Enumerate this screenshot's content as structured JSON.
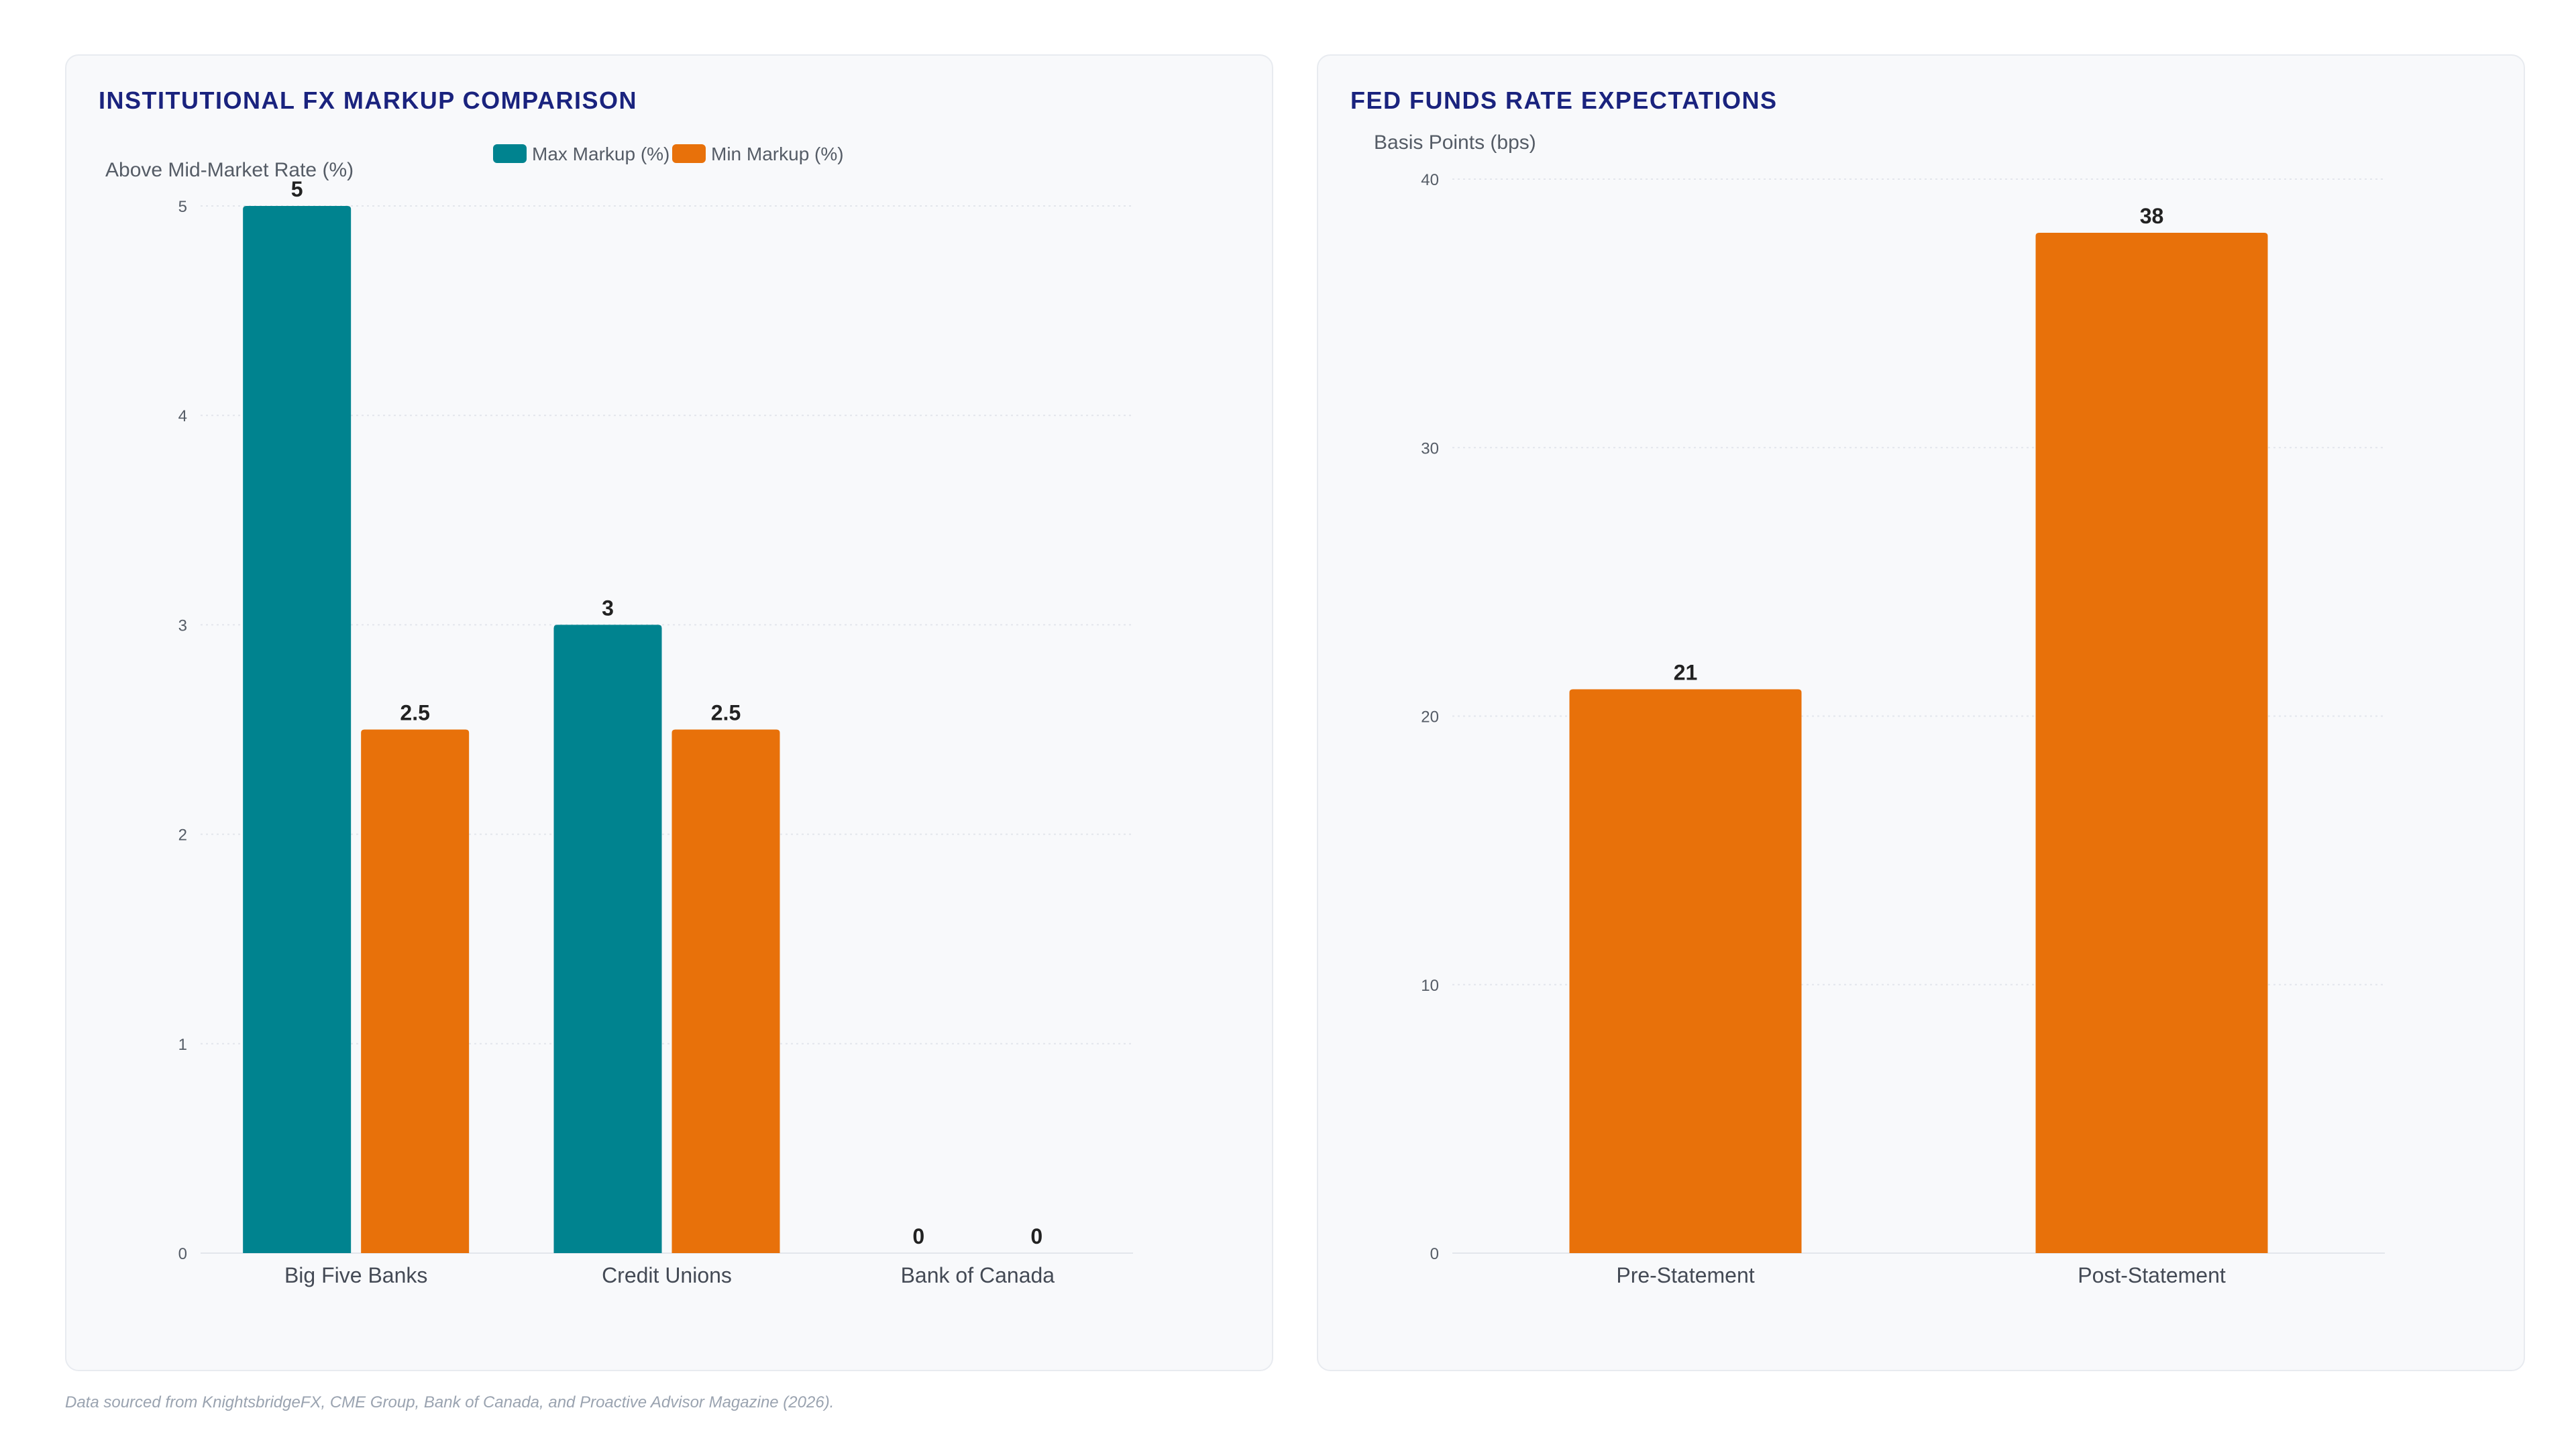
{
  "charts": [
    {
      "title": "INSTITUTIONAL FX MARKUP COMPARISON"
    },
    {
      "title": "FED FUNDS RATE EXPECTATIONS"
    }
  ],
  "chart_data": [
    {
      "type": "bar",
      "title": "INSTITUTIONAL FX MARKUP COMPARISON",
      "xlabel": "",
      "ylabel": "Above Mid-Market Rate (%)",
      "categories": [
        "Big Five Banks",
        "Credit Unions",
        "Bank of Canada"
      ],
      "series": [
        {
          "name": "Max Markup (%)",
          "values": [
            5,
            3,
            0
          ],
          "color": "#00838f"
        },
        {
          "name": "Min Markup (%)",
          "values": [
            2.5,
            2.5,
            0
          ],
          "color": "#e8710a"
        }
      ],
      "ylim": [
        0,
        5
      ],
      "yticks": [
        0,
        1,
        2,
        3,
        4,
        5
      ],
      "grid": true,
      "legend": "top-center",
      "data_labels": true
    },
    {
      "type": "bar",
      "title": "FED FUNDS RATE EXPECTATIONS",
      "xlabel": "",
      "ylabel": "Basis Points (bps)",
      "categories": [
        "Pre-Statement",
        "Post-Statement"
      ],
      "series": [
        {
          "name": "",
          "values": [
            21,
            38
          ],
          "color": "#e8710a"
        }
      ],
      "ylim": [
        0,
        40
      ],
      "yticks": [
        0,
        10,
        20,
        30,
        40
      ],
      "grid": true,
      "legend": "none",
      "data_labels": true
    }
  ],
  "footer": {
    "source": "Data sourced from KnightsbridgeFX, CME Group, Bank of Canada, and Proactive Advisor Magazine (2026)."
  }
}
